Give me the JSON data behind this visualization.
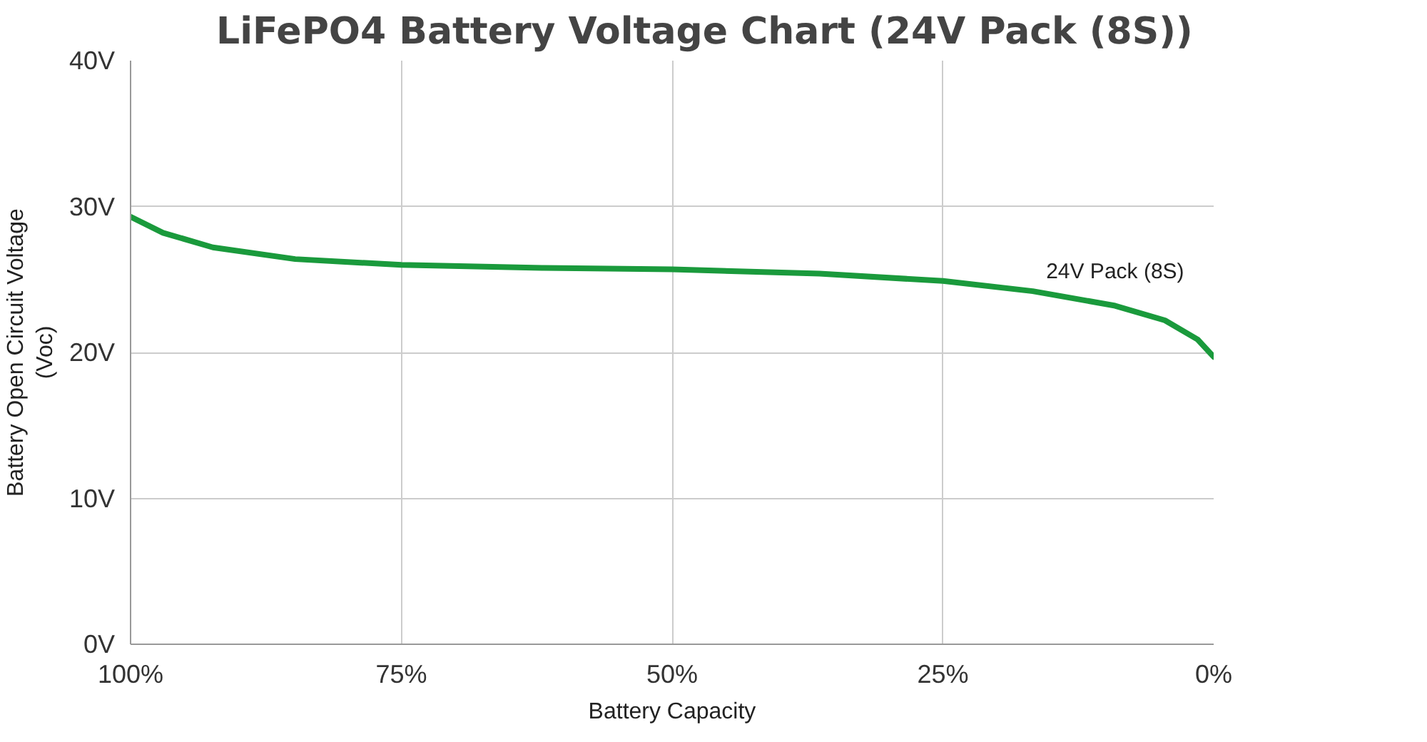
{
  "chart_data": {
    "type": "line",
    "title": "LiFePO4 Battery Voltage Chart (24V Pack (8S))",
    "xlabel": "Battery Capacity",
    "ylabel": "Battery Open Circuit Voltage\n(Voc)",
    "x": [
      100,
      97,
      92.4,
      84.8,
      75,
      62,
      50,
      36.4,
      25,
      16.7,
      9.1,
      4.5,
      1.5,
      0
    ],
    "series": [
      {
        "name": "24V Pack (8S)",
        "color": "#1a9a3c",
        "values": [
          29.3,
          28.2,
          27.2,
          26.4,
          26.0,
          25.8,
          25.7,
          25.4,
          24.9,
          24.2,
          23.2,
          22.2,
          20.9,
          19.7
        ]
      }
    ],
    "xlim": [
      100,
      0
    ],
    "ylim": [
      0,
      40
    ],
    "xticks": [
      {
        "value": 100,
        "label": "100%"
      },
      {
        "value": 75,
        "label": "75%"
      },
      {
        "value": 50,
        "label": "50%"
      },
      {
        "value": 25,
        "label": "25%"
      },
      {
        "value": 0,
        "label": "0%"
      }
    ],
    "yticks": [
      {
        "value": 0,
        "label": "0V"
      },
      {
        "value": 10,
        "label": "10V"
      },
      {
        "value": 20,
        "label": "20V"
      },
      {
        "value": 30,
        "label": "30V"
      },
      {
        "value": 40,
        "label": "40V"
      }
    ],
    "grid": true,
    "marker": "none",
    "line_style": "solid"
  }
}
